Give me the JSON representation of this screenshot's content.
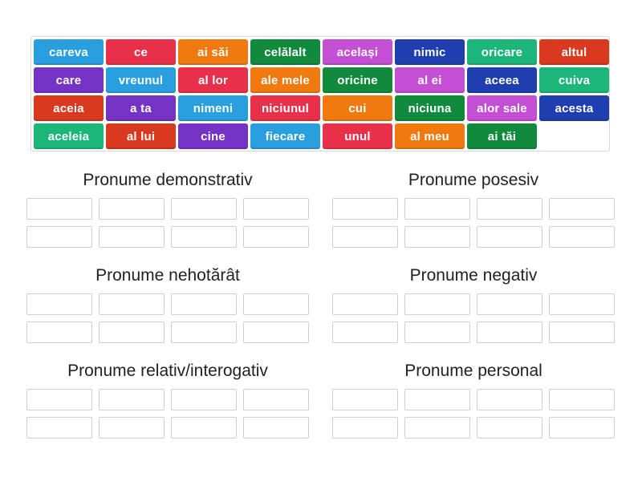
{
  "tiles": [
    {
      "label": "careva",
      "color": "#2a9fe0"
    },
    {
      "label": "ce",
      "color": "#e8304a"
    },
    {
      "label": "ai săi",
      "color": "#f07a10"
    },
    {
      "label": "celălalt",
      "color": "#128a3e"
    },
    {
      "label": "același",
      "color": "#c44fd4"
    },
    {
      "label": "nimic",
      "color": "#1f3fb0"
    },
    {
      "label": "oricare",
      "color": "#1cb57a"
    },
    {
      "label": "altul",
      "color": "#d9391e"
    },
    {
      "label": "care",
      "color": "#7433c4"
    },
    {
      "label": "vreunul",
      "color": "#2a9fe0"
    },
    {
      "label": "al lor",
      "color": "#e8304a"
    },
    {
      "label": "ale mele",
      "color": "#f07a10"
    },
    {
      "label": "oricine",
      "color": "#128a3e"
    },
    {
      "label": "al ei",
      "color": "#c44fd4"
    },
    {
      "label": "aceea",
      "color": "#1f3fb0"
    },
    {
      "label": "cuiva",
      "color": "#1cb57a"
    },
    {
      "label": "aceia",
      "color": "#d9391e"
    },
    {
      "label": "a ta",
      "color": "#7433c4"
    },
    {
      "label": "nimeni",
      "color": "#2a9fe0"
    },
    {
      "label": "niciunul",
      "color": "#e8304a"
    },
    {
      "label": "cui",
      "color": "#f07a10"
    },
    {
      "label": "niciuna",
      "color": "#128a3e"
    },
    {
      "label": "alor sale",
      "color": "#c44fd4"
    },
    {
      "label": "acesta",
      "color": "#1f3fb0"
    },
    {
      "label": "aceleia",
      "color": "#1cb57a"
    },
    {
      "label": "al lui",
      "color": "#d9391e"
    },
    {
      "label": "cine",
      "color": "#7433c4"
    },
    {
      "label": "fiecare",
      "color": "#2a9fe0"
    },
    {
      "label": "unul",
      "color": "#e8304a"
    },
    {
      "label": "al meu",
      "color": "#f07a10"
    },
    {
      "label": "ai tăi",
      "color": "#128a3e"
    }
  ],
  "groups": [
    {
      "title": "Pronume demonstrativ"
    },
    {
      "title": "Pronume posesiv"
    },
    {
      "title": "Pronume nehotărât"
    },
    {
      "title": "Pronume negativ"
    },
    {
      "title": "Pronume relativ/interogativ"
    },
    {
      "title": "Pronume personal"
    }
  ]
}
